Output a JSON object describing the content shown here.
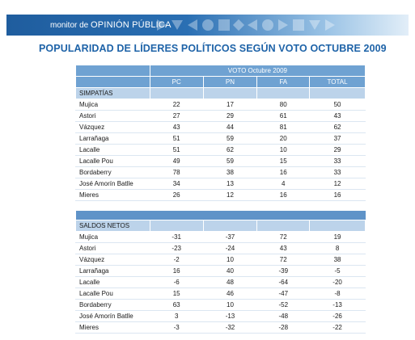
{
  "banner": {
    "prefix": "monitor de ",
    "brand": "OPINIÓN PÚBLICA",
    "color": "#1f5d9e"
  },
  "title": "POPULARIDAD DE LÍDERES POLÍTICOS SEGÚN VOTO OCTUBRE 2009",
  "table": {
    "group_header": "VOTO Octubre 2009",
    "columns": [
      "PC",
      "PN",
      "FA",
      "TOTAL"
    ],
    "sections": [
      {
        "label": "SIMPATÍAS",
        "rows": [
          {
            "name": "Mujica",
            "values": [
              "22",
              "17",
              "80",
              "50"
            ]
          },
          {
            "name": "Astori",
            "values": [
              "27",
              "29",
              "61",
              "43"
            ]
          },
          {
            "name": "Vázquez",
            "values": [
              "43",
              "44",
              "81",
              "62"
            ]
          },
          {
            "name": "Larrañaga",
            "values": [
              "51",
              "59",
              "20",
              "37"
            ]
          },
          {
            "name": "Lacalle",
            "values": [
              "51",
              "62",
              "10",
              "29"
            ]
          },
          {
            "name": "Lacalle Pou",
            "values": [
              "49",
              "59",
              "15",
              "33"
            ]
          },
          {
            "name": "Bordaberry",
            "values": [
              "78",
              "38",
              "16",
              "33"
            ]
          },
          {
            "name": "José Amorín Batlle",
            "values": [
              "34",
              "13",
              "4",
              "12"
            ]
          },
          {
            "name": "Mieres",
            "values": [
              "26",
              "12",
              "16",
              "16"
            ]
          }
        ]
      },
      {
        "label": "SALDOS NETOS",
        "rows": [
          {
            "name": "Mujica",
            "values": [
              "-31",
              "-37",
              "72",
              "19"
            ]
          },
          {
            "name": "Astori",
            "values": [
              "-23",
              "-24",
              "43",
              "8"
            ]
          },
          {
            "name": "Vázquez",
            "values": [
              "-2",
              "10",
              "72",
              "38"
            ]
          },
          {
            "name": "Larrañaga",
            "values": [
              "16",
              "40",
              "-39",
              "-5"
            ]
          },
          {
            "name": "Lacalle",
            "values": [
              "-6",
              "48",
              "-64",
              "-20"
            ]
          },
          {
            "name": "Lacalle Pou",
            "values": [
              "15",
              "46",
              "-47",
              "-8"
            ]
          },
          {
            "name": "Bordaberry",
            "values": [
              "63",
              "10",
              "-52",
              "-13"
            ]
          },
          {
            "name": "José Amorín Batlle",
            "values": [
              "3",
              "-13",
              "-48",
              "-26"
            ]
          },
          {
            "name": "Mieres",
            "values": [
              "-3",
              "-32",
              "-28",
              "-22"
            ]
          }
        ]
      }
    ]
  }
}
